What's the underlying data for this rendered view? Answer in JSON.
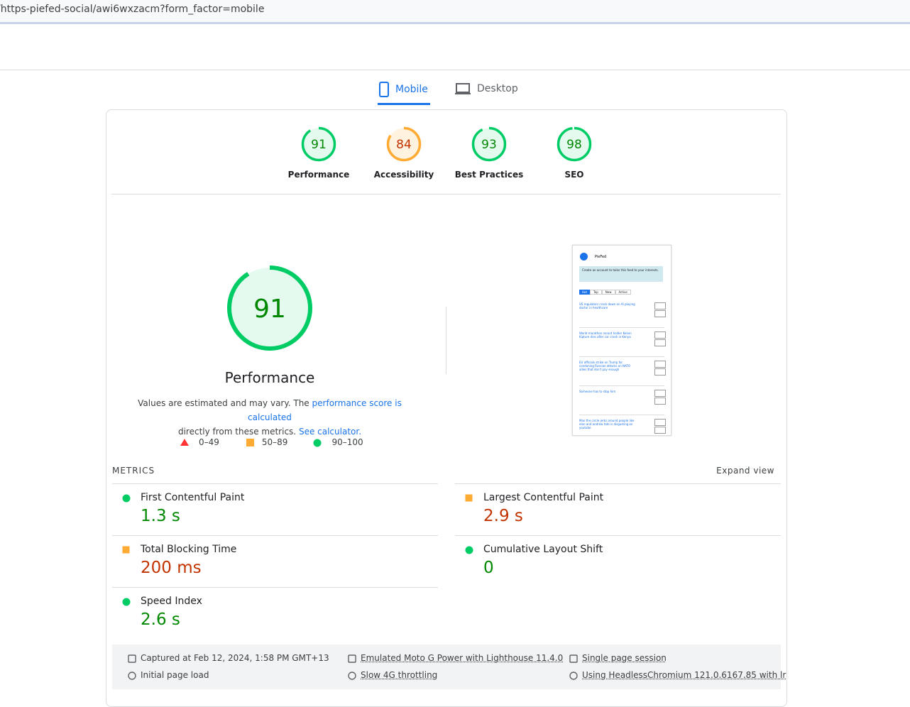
{
  "address_bar": {
    "url": "/https-piefed-social/awi6wxzacm?form_factor=mobile"
  },
  "tabs": [
    "Mobile",
    "Desktop"
  ],
  "scores": [
    {
      "label": "Performance",
      "value": 91,
      "rating": "pass"
    },
    {
      "label": "Accessibility",
      "value": 84,
      "rating": "average"
    },
    {
      "label": "Best Practices",
      "value": 93,
      "rating": "pass"
    },
    {
      "label": "SEO",
      "value": 98,
      "rating": "pass"
    }
  ],
  "main": {
    "score": 91,
    "rating": "pass",
    "label": "Performance",
    "note_start": "Values are estimated and may vary. The",
    "note_link": "performance score is calculated",
    "note_mid": "directly from these metrics.",
    "note_link2": "See calculator."
  },
  "legend": [
    "0–49",
    "50–89",
    "90–100"
  ],
  "thumbnail": {
    "site": "PieFed",
    "banner": "Create an account to tailor this feed to your interests.",
    "sort_tabs": [
      "Hot",
      "Top",
      "New",
      "Active"
    ],
    "posts": [
      "US regulators crack down on AI playing doctor in healthcare",
      "World marathon record holder Kelvin Kiptum dies after car crash in Kenya",
      "EU officials strike on Trump for condoning Russian attacks on NATO allies that don't pay enough",
      "Someone has to stop him",
      "Man the circle jerks around people like elon and andrew tate is disgusting on youtube"
    ]
  },
  "metrics_title": "METRICS",
  "expand": "Expand view",
  "metrics": [
    {
      "name": "First Contentful Paint",
      "value": "1.3 s",
      "rating": "pass"
    },
    {
      "name": "Largest Contentful Paint",
      "value": "2.9 s",
      "rating": "average"
    },
    {
      "name": "Total Blocking Time",
      "value": "200 ms",
      "rating": "average"
    },
    {
      "name": "Cumulative Layout Shift",
      "value": "0",
      "rating": "pass"
    },
    {
      "name": "Speed Index",
      "value": "2.6 s",
      "rating": "pass"
    }
  ],
  "footer": [
    "Captured at Feb 12, 2024, 1:58 PM GMT+13",
    "Initial page load",
    "Emulated Moto G Power with Lighthouse 11.4.0",
    "Slow 4G throttling",
    "Single page session",
    "Using HeadlessChromium 121.0.6167.85 with lr"
  ]
}
